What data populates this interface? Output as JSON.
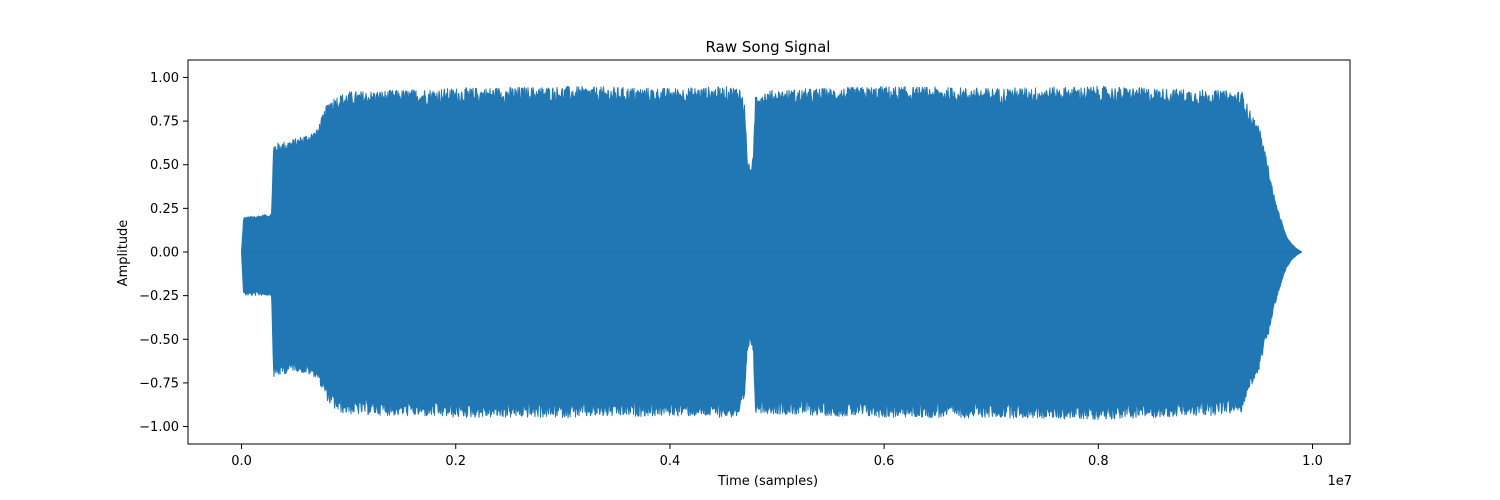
{
  "chart_data": {
    "type": "line",
    "title": "Raw Song Signal",
    "xlabel": "Time (samples)",
    "ylabel": "Amplitude",
    "x_offset_label": "1e7",
    "xlim": [
      -0.05,
      1.035
    ],
    "ylim": [
      -1.1,
      1.1
    ],
    "x_ticks": [
      0.0,
      0.2,
      0.4,
      0.6,
      0.8,
      1.0
    ],
    "x_tick_labels": [
      "0.0",
      "0.2",
      "0.4",
      "0.6",
      "0.8",
      "1.0"
    ],
    "y_ticks": [
      -1.0,
      -0.75,
      -0.5,
      -0.25,
      0.0,
      0.25,
      0.5,
      0.75,
      1.0
    ],
    "y_tick_labels": [
      "−1.00",
      "−0.75",
      "−0.50",
      "−0.25",
      "0.00",
      "0.25",
      "0.50",
      "0.75",
      "1.00"
    ],
    "grid": false,
    "series": [
      {
        "color": "#2077b4",
        "envelope_x": [
          0.0,
          0.002,
          0.028,
          0.03,
          0.05,
          0.07,
          0.08,
          0.083,
          0.09,
          0.1,
          0.2,
          0.3,
          0.4,
          0.465,
          0.47,
          0.472,
          0.475,
          0.478,
          0.48,
          0.5,
          0.6,
          0.7,
          0.8,
          0.9,
          0.935,
          0.94,
          0.95,
          0.955,
          0.96,
          0.965,
          0.97,
          0.975,
          0.98,
          0.985,
          0.99
        ],
        "envelope_upper": [
          0.0,
          0.2,
          0.22,
          0.62,
          0.65,
          0.7,
          0.85,
          0.88,
          0.9,
          0.92,
          0.94,
          0.95,
          0.94,
          0.95,
          0.85,
          0.55,
          0.48,
          0.55,
          0.92,
          0.93,
          0.95,
          0.94,
          0.95,
          0.93,
          0.92,
          0.83,
          0.72,
          0.6,
          0.45,
          0.3,
          0.2,
          0.1,
          0.05,
          0.02,
          0.0
        ],
        "envelope_lower": [
          0.0,
          -0.25,
          -0.25,
          -0.72,
          -0.68,
          -0.72,
          -0.85,
          -0.88,
          -0.92,
          -0.93,
          -0.95,
          -0.95,
          -0.94,
          -0.95,
          -0.85,
          -0.6,
          -0.5,
          -0.6,
          -0.92,
          -0.93,
          -0.95,
          -0.95,
          -0.96,
          -0.94,
          -0.92,
          -0.8,
          -0.68,
          -0.55,
          -0.45,
          -0.3,
          -0.2,
          -0.1,
          -0.05,
          -0.02,
          0.0
        ]
      }
    ]
  }
}
